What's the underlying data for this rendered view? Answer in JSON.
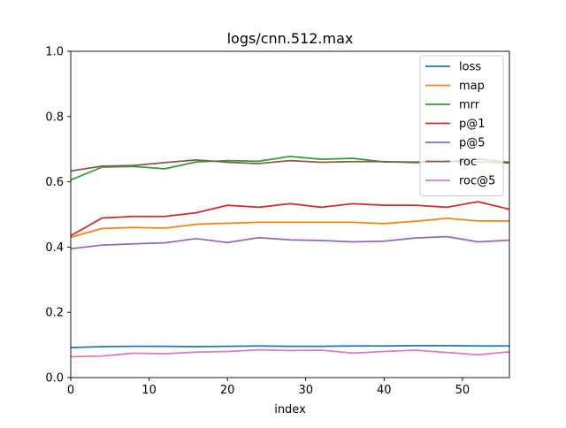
{
  "chart_data": {
    "type": "line",
    "title": "logs/cnn.512.max",
    "xlabel": "index",
    "ylabel": "",
    "xlim": [
      0,
      56
    ],
    "ylim": [
      0.0,
      1.0
    ],
    "xticks": [
      0,
      10,
      20,
      30,
      40,
      50
    ],
    "yticks": [
      0.0,
      0.2,
      0.4,
      0.6,
      0.8,
      1.0
    ],
    "xtick_labels": [
      "0",
      "10",
      "20",
      "30",
      "40",
      "50"
    ],
    "ytick_labels": [
      "0.0",
      "0.2",
      "0.4",
      "0.6",
      "0.8",
      "1.0"
    ],
    "grid": false,
    "legend_position": "top-right",
    "x": [
      0,
      4,
      8,
      12,
      16,
      20,
      24,
      28,
      32,
      36,
      40,
      44,
      48,
      52,
      56
    ],
    "series": [
      {
        "name": "loss",
        "color": "#1f77b4",
        "values": [
          0.092,
          0.095,
          0.096,
          0.096,
          0.095,
          0.096,
          0.097,
          0.096,
          0.096,
          0.097,
          0.097,
          0.098,
          0.098,
          0.097,
          0.097
        ]
      },
      {
        "name": "map",
        "color": "#ff7f0e",
        "values": [
          0.43,
          0.457,
          0.46,
          0.458,
          0.47,
          0.473,
          0.476,
          0.476,
          0.476,
          0.476,
          0.472,
          0.479,
          0.488,
          0.48,
          0.48
        ]
      },
      {
        "name": "mrr",
        "color": "#2ca02c",
        "values": [
          0.606,
          0.645,
          0.647,
          0.64,
          0.661,
          0.665,
          0.663,
          0.678,
          0.669,
          0.672,
          0.661,
          0.661,
          0.661,
          0.67,
          0.66
        ]
      },
      {
        "name": "p@1",
        "color": "#d62728",
        "values": [
          0.435,
          0.489,
          0.494,
          0.494,
          0.505,
          0.528,
          0.522,
          0.533,
          0.522,
          0.533,
          0.528,
          0.528,
          0.522,
          0.539,
          0.516
        ]
      },
      {
        "name": "p@5",
        "color": "#9467bd",
        "values": [
          0.395,
          0.406,
          0.41,
          0.413,
          0.426,
          0.414,
          0.429,
          0.422,
          0.42,
          0.416,
          0.418,
          0.428,
          0.432,
          0.416,
          0.421
        ]
      },
      {
        "name": "roc",
        "color": "#8c564b",
        "values": [
          0.633,
          0.648,
          0.65,
          0.659,
          0.667,
          0.66,
          0.656,
          0.665,
          0.66,
          0.662,
          0.662,
          0.659,
          0.662,
          0.661,
          0.658
        ]
      },
      {
        "name": "roc@5",
        "color": "#e377c2",
        "values": [
          0.064,
          0.066,
          0.075,
          0.073,
          0.078,
          0.08,
          0.085,
          0.083,
          0.084,
          0.075,
          0.08,
          0.084,
          0.077,
          0.07,
          0.079
        ]
      }
    ]
  }
}
